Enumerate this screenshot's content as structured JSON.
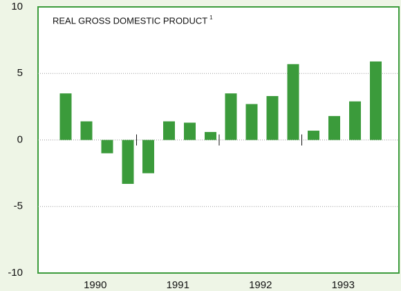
{
  "chart_data": {
    "type": "bar",
    "title": "REAL GROSS DOMESTIC PRODUCT",
    "title_footnote": "1",
    "groups": [
      {
        "label": "1990",
        "values": [
          3.5,
          1.4,
          -1.0,
          -3.3
        ]
      },
      {
        "label": "1991",
        "values": [
          -2.5,
          1.4,
          1.3,
          0.6
        ]
      },
      {
        "label": "1992",
        "values": [
          3.5,
          2.7,
          3.3,
          5.7
        ]
      },
      {
        "label": "1993",
        "values": [
          0.7,
          1.8,
          2.9,
          5.9
        ]
      }
    ],
    "color": "#3b9b3b",
    "ylim": [
      -10,
      10
    ],
    "yticks": [
      -10,
      -5,
      0,
      5,
      10
    ],
    "grid": true
  }
}
